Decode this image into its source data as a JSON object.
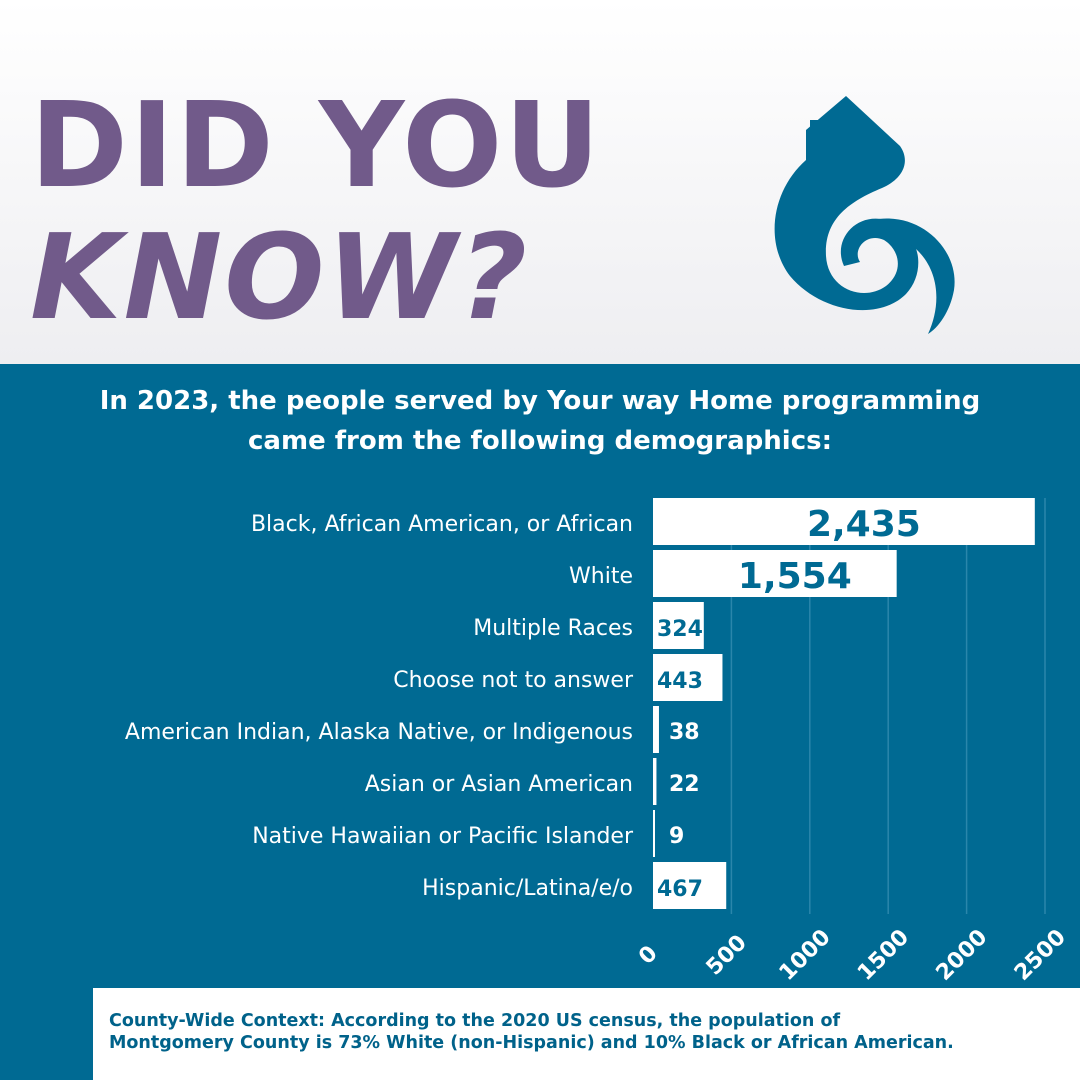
{
  "headline": {
    "line1": "DID YOU",
    "line2": "KNOW?"
  },
  "subtitle": {
    "line1": "In 2023, the people served by Your way Home programming",
    "line2": "came from the following demographics:"
  },
  "colors": {
    "purple": "#715a8a",
    "blue": "#006a93",
    "white": "#ffffff"
  },
  "logo": {
    "icon": "your-way-home-logo-icon"
  },
  "chart_data": {
    "type": "bar",
    "orientation": "horizontal",
    "title": "",
    "xlabel": "",
    "ylabel": "",
    "xlim": [
      0,
      2500
    ],
    "grid": true,
    "categories": [
      "Black, African American, or African",
      "White",
      "Multiple Races",
      "Choose not to answer",
      "American Indian, Alaska Native, or Indigenous",
      "Asian or Asian American",
      "Native Hawaiian or Pacific Islander",
      "Hispanic/Latina/e/o"
    ],
    "values": [
      2435,
      1554,
      324,
      443,
      38,
      22,
      9,
      467
    ],
    "data_labels": [
      "2,435",
      "1,554",
      "324",
      "443",
      "38",
      "22",
      "9",
      "467"
    ],
    "ticks": [
      0,
      500,
      1000,
      1500,
      2000,
      2500
    ],
    "tick_labels": [
      "0",
      "500",
      "1000",
      "1500",
      "2000",
      "2500"
    ]
  },
  "note": {
    "line1": "County-Wide Context: According to the 2020 US census, the population of",
    "line2": "Montgomery County is 73% White (non-Hispanic) and 10% Black or African American."
  }
}
